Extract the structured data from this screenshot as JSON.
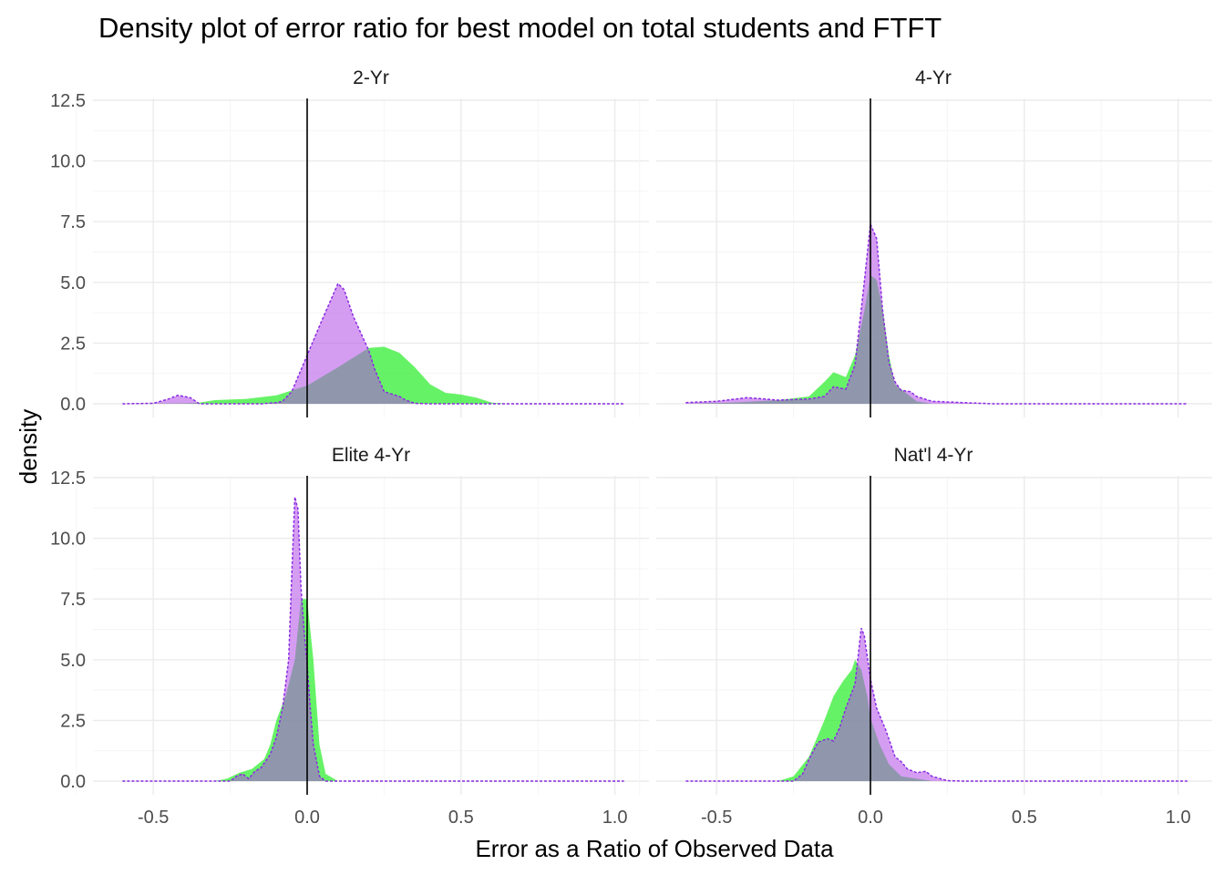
{
  "chart_data": {
    "type": "area",
    "title": "Density plot of error ratio for best model on total students and FTFT",
    "xlabel": "Error as a Ratio of Observed Data",
    "ylabel": "density",
    "xlim": [
      -0.6,
      1.03
    ],
    "ylim": [
      0,
      12.5
    ],
    "x_ticks": [
      -0.5,
      0.0,
      0.5,
      1.0
    ],
    "x_tick_labels": [
      "-0.5",
      "0.0",
      "0.5",
      "1.0"
    ],
    "y_ticks": [
      0,
      2.5,
      5,
      7.5,
      10,
      12.5
    ],
    "y_tick_labels": [
      "0.0",
      "2.5",
      "5.0",
      "7.5",
      "10.0",
      "12.5"
    ],
    "vline_x": 0,
    "grid": true,
    "legend": "none",
    "colors": {
      "series_green_fill": "#33ee33",
      "series_purple_fill": "#b24de8",
      "series_purple_line": "#8a2be2",
      "overlap": "#8a7ab0",
      "vline": "#000000"
    },
    "panels": [
      {
        "label": "2-Yr",
        "series": [
          {
            "points": [
              [
                -0.6,
                0
              ],
              [
                -0.4,
                0.02
              ],
              [
                -0.35,
                0.05
              ],
              [
                -0.3,
                0.15
              ],
              [
                -0.2,
                0.2
              ],
              [
                -0.1,
                0.35
              ],
              [
                0,
                0.75
              ],
              [
                0.1,
                1.5
              ],
              [
                0.2,
                2.3
              ],
              [
                0.25,
                2.35
              ],
              [
                0.3,
                2.1
              ],
              [
                0.35,
                1.5
              ],
              [
                0.4,
                0.8
              ],
              [
                0.45,
                0.45
              ],
              [
                0.5,
                0.38
              ],
              [
                0.55,
                0.25
              ],
              [
                0.6,
                0.05
              ],
              [
                0.65,
                0
              ],
              [
                1.03,
                0
              ]
            ]
          },
          {
            "points": [
              [
                -0.6,
                0
              ],
              [
                -0.5,
                0.02
              ],
              [
                -0.45,
                0.2
              ],
              [
                -0.42,
                0.35
              ],
              [
                -0.38,
                0.25
              ],
              [
                -0.35,
                0
              ],
              [
                -0.2,
                0
              ],
              [
                -0.15,
                0
              ],
              [
                -0.1,
                0.05
              ],
              [
                -0.08,
                0.1
              ],
              [
                -0.05,
                0.5
              ],
              [
                0,
                2.0
              ],
              [
                0.05,
                3.5
              ],
              [
                0.1,
                4.95
              ],
              [
                0.12,
                4.7
              ],
              [
                0.15,
                3.6
              ],
              [
                0.2,
                2.2
              ],
              [
                0.22,
                1.4
              ],
              [
                0.25,
                0.5
              ],
              [
                0.3,
                0.3
              ],
              [
                0.32,
                0.15
              ],
              [
                0.35,
                0.02
              ],
              [
                0.4,
                0
              ],
              [
                1.03,
                0
              ]
            ]
          }
        ]
      },
      {
        "label": "4-Yr",
        "series": [
          {
            "points": [
              [
                -0.6,
                0
              ],
              [
                -0.45,
                0.05
              ],
              [
                -0.3,
                0.15
              ],
              [
                -0.2,
                0.3
              ],
              [
                -0.15,
                0.9
              ],
              [
                -0.12,
                1.3
              ],
              [
                -0.08,
                1.1
              ],
              [
                -0.05,
                2.0
              ],
              [
                -0.02,
                3.8
              ],
              [
                0,
                5.3
              ],
              [
                0.02,
                5.1
              ],
              [
                0.04,
                3.9
              ],
              [
                0.06,
                2.0
              ],
              [
                0.08,
                0.8
              ],
              [
                0.1,
                0.6
              ],
              [
                0.13,
                0.3
              ],
              [
                0.15,
                0.1
              ],
              [
                0.2,
                0
              ],
              [
                1.03,
                0
              ]
            ]
          },
          {
            "points": [
              [
                -0.6,
                0.05
              ],
              [
                -0.5,
                0.1
              ],
              [
                -0.4,
                0.25
              ],
              [
                -0.3,
                0.15
              ],
              [
                -0.2,
                0.2
              ],
              [
                -0.15,
                0.3
              ],
              [
                -0.12,
                0.7
              ],
              [
                -0.08,
                0.6
              ],
              [
                -0.05,
                1.6
              ],
              [
                -0.02,
                5.0
              ],
              [
                0,
                7.4
              ],
              [
                0.02,
                6.8
              ],
              [
                0.04,
                3.8
              ],
              [
                0.06,
                1.7
              ],
              [
                0.08,
                0.9
              ],
              [
                0.1,
                0.55
              ],
              [
                0.13,
                0.5
              ],
              [
                0.15,
                0.3
              ],
              [
                0.2,
                0.1
              ],
              [
                0.3,
                0.05
              ],
              [
                0.4,
                0
              ],
              [
                1.03,
                0
              ]
            ]
          }
        ]
      },
      {
        "label": "Elite 4-Yr",
        "series": [
          {
            "points": [
              [
                -0.6,
                0
              ],
              [
                -0.3,
                0
              ],
              [
                -0.26,
                0.1
              ],
              [
                -0.22,
                0.35
              ],
              [
                -0.18,
                0.5
              ],
              [
                -0.14,
                0.9
              ],
              [
                -0.12,
                1.5
              ],
              [
                -0.1,
                2.5
              ],
              [
                -0.07,
                3.5
              ],
              [
                -0.04,
                5.0
              ],
              [
                -0.02,
                7.5
              ],
              [
                0,
                7.5
              ],
              [
                0.02,
                5.0
              ],
              [
                0.04,
                1.5
              ],
              [
                0.06,
                0.3
              ],
              [
                0.1,
                0
              ],
              [
                1.03,
                0
              ]
            ]
          },
          {
            "points": [
              [
                -0.6,
                0
              ],
              [
                -0.25,
                0
              ],
              [
                -0.23,
                0.2
              ],
              [
                -0.21,
                0.3
              ],
              [
                -0.19,
                0.1
              ],
              [
                -0.17,
                0.4
              ],
              [
                -0.15,
                0.55
              ],
              [
                -0.12,
                1.1
              ],
              [
                -0.1,
                1.8
              ],
              [
                -0.08,
                3.0
              ],
              [
                -0.06,
                5.0
              ],
              [
                -0.05,
                8.5
              ],
              [
                -0.04,
                11.7
              ],
              [
                -0.03,
                11.2
              ],
              [
                -0.02,
                8.0
              ],
              [
                -0.01,
                6.2
              ],
              [
                0,
                4.8
              ],
              [
                0.01,
                3.0
              ],
              [
                0.02,
                1.5
              ],
              [
                0.04,
                0.2
              ],
              [
                0.06,
                0
              ],
              [
                1.03,
                0
              ]
            ]
          }
        ]
      },
      {
        "label": "Nat'l 4-Yr",
        "series": [
          {
            "points": [
              [
                -0.6,
                0
              ],
              [
                -0.3,
                0
              ],
              [
                -0.25,
                0.2
              ],
              [
                -0.2,
                1.0
              ],
              [
                -0.15,
                2.5
              ],
              [
                -0.12,
                3.5
              ],
              [
                -0.09,
                4.1
              ],
              [
                -0.06,
                4.6
              ],
              [
                -0.05,
                5.0
              ],
              [
                -0.03,
                4.6
              ],
              [
                -0.01,
                3.5
              ],
              [
                0,
                2.6
              ],
              [
                0.03,
                1.5
              ],
              [
                0.06,
                0.7
              ],
              [
                0.1,
                0.2
              ],
              [
                0.15,
                0.1
              ],
              [
                0.2,
                0
              ],
              [
                1.03,
                0
              ]
            ]
          },
          {
            "points": [
              [
                -0.6,
                0
              ],
              [
                -0.25,
                0
              ],
              [
                -0.22,
                0.3
              ],
              [
                -0.2,
                0.9
              ],
              [
                -0.17,
                1.6
              ],
              [
                -0.14,
                1.75
              ],
              [
                -0.12,
                1.65
              ],
              [
                -0.1,
                2.2
              ],
              [
                -0.08,
                3.0
              ],
              [
                -0.05,
                4.0
              ],
              [
                -0.03,
                6.3
              ],
              [
                -0.02,
                6.0
              ],
              [
                0,
                4.2
              ],
              [
                0.02,
                3.0
              ],
              [
                0.05,
                2.1
              ],
              [
                0.08,
                1.0
              ],
              [
                0.1,
                0.8
              ],
              [
                0.12,
                0.5
              ],
              [
                0.15,
                0.35
              ],
              [
                0.18,
                0.4
              ],
              [
                0.2,
                0.2
              ],
              [
                0.25,
                0.02
              ],
              [
                0.3,
                0
              ],
              [
                1.03,
                0
              ]
            ]
          }
        ]
      }
    ]
  }
}
